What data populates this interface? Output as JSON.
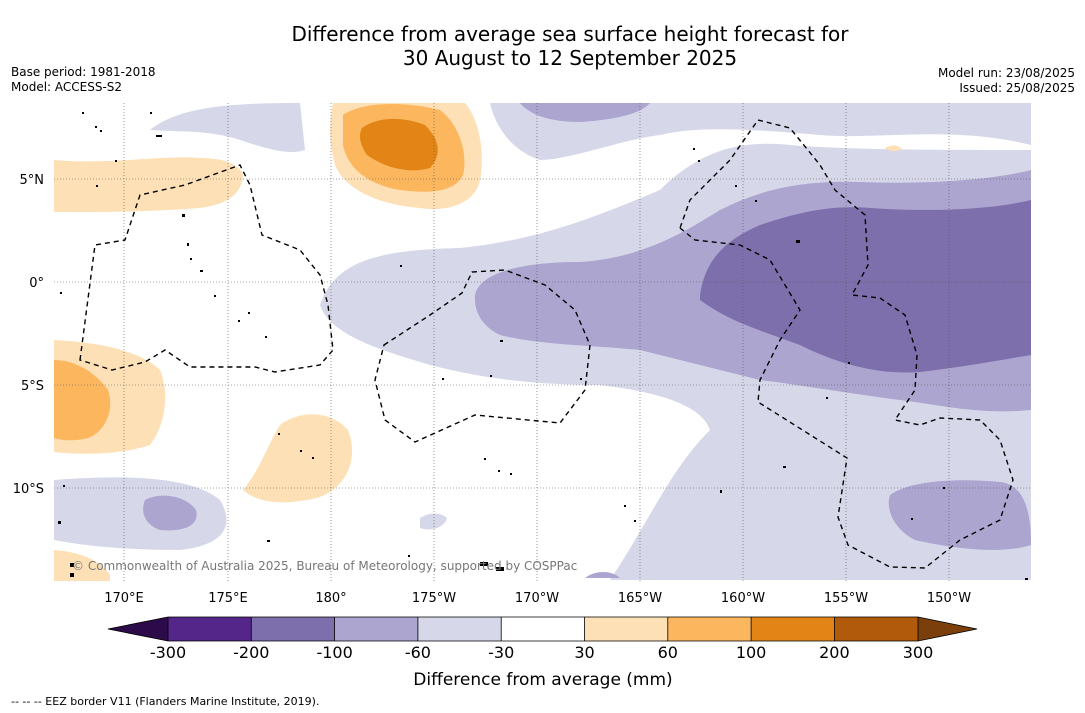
{
  "title": {
    "line1": "Difference from average sea surface height forecast for",
    "line2": "30 August to 12 September 2025"
  },
  "meta": {
    "base_period": "Base period: 1981-2018",
    "model": "Model: ACCESS-S2",
    "model_run": "Model run: 23/08/2025",
    "issued": "Issued: 25/08/2025"
  },
  "map": {
    "lon_labels": [
      "170°E",
      "175°E",
      "180°",
      "175°W",
      "170°W",
      "165°W",
      "160°W",
      "155°W",
      "150°W"
    ],
    "lat_labels": [
      "5°N",
      "0°",
      "5°S",
      "10°S"
    ],
    "copyright": "© Commonwealth of Australia 2025, Bureau of Meteorology, supported by COSPPac"
  },
  "colorbar": {
    "ticks": [
      "-300",
      "-200",
      "-100",
      "-60",
      "-30",
      "30",
      "60",
      "100",
      "200",
      "300"
    ],
    "label": "Difference from average (mm)",
    "colors": {
      "below": "#2d0a4a",
      "c1": "#54268a",
      "c2": "#7d6fab",
      "c3": "#aca5cf",
      "c4": "#d7d7ea",
      "c5": "#ffffff",
      "c6": "#fde0b5",
      "c7": "#fbb65e",
      "c8": "#e38516",
      "c9": "#b15a0b",
      "above": "#7b3f0c"
    }
  },
  "footer": {
    "eez_legend": "-- -- -- EEZ border V11 (Flanders Marine Institute, 2019)."
  }
}
